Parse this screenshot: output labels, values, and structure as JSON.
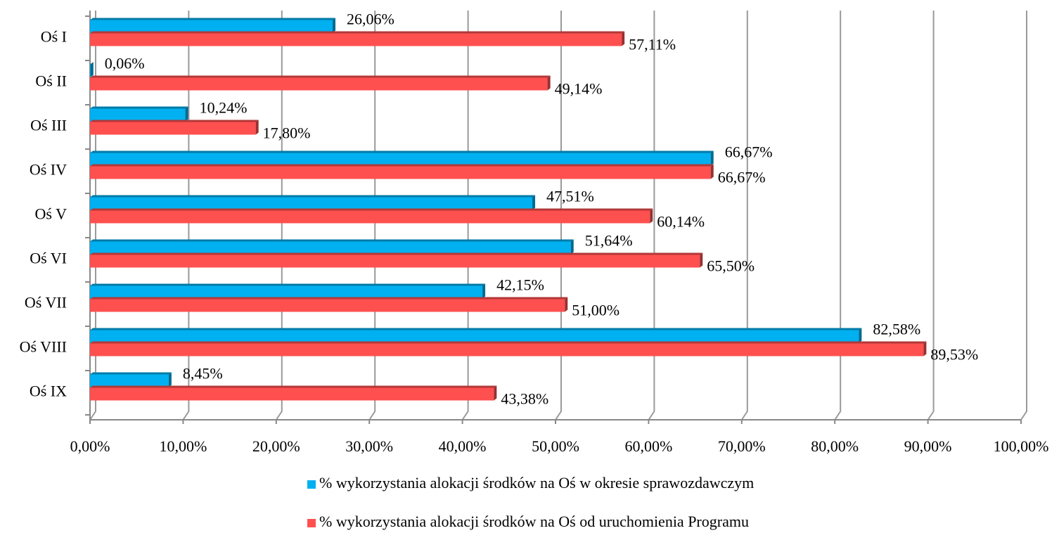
{
  "chart_data": {
    "type": "bar",
    "orientation": "horizontal",
    "categories": [
      "Oś I",
      "Oś II",
      "Oś III",
      "Oś IV",
      "Oś V",
      "Oś VI",
      "Oś VII",
      "Oś VIII",
      "Oś IX"
    ],
    "series": [
      {
        "name": "% wykorzystania alokacji środków na Oś w okresie sprawozdawczym",
        "color": "#00b0f0",
        "values": [
          26.06,
          0.06,
          10.24,
          66.67,
          47.51,
          51.64,
          42.15,
          82.58,
          8.45
        ],
        "value_labels": [
          "26,06%",
          "0,06%",
          "10,24%",
          "66,67%",
          "47,51%",
          "51,64%",
          "42,15%",
          "82,58%",
          "8,45%"
        ]
      },
      {
        "name": "% wykorzystania alokacji środków na Oś od uruchomienia Programu",
        "color": "#ff5050",
        "values": [
          57.11,
          49.14,
          17.8,
          66.67,
          60.14,
          65.5,
          51.0,
          89.53,
          43.38
        ],
        "value_labels": [
          "57,11%",
          "49,14%",
          "17,80%",
          "66,67%",
          "60,14%",
          "65,50%",
          "51,00%",
          "89,53%",
          "43,38%"
        ]
      }
    ],
    "xlim": [
      0,
      100
    ],
    "xticks": [
      {
        "value": 0,
        "label": "0,00%"
      },
      {
        "value": 10,
        "label": "10,00%"
      },
      {
        "value": 20,
        "label": "20,00%"
      },
      {
        "value": 30,
        "label": "30,00%"
      },
      {
        "value": 40,
        "label": "40,00%"
      },
      {
        "value": 50,
        "label": "50,00%"
      },
      {
        "value": 60,
        "label": "60,00%"
      },
      {
        "value": 70,
        "label": "70,00%"
      },
      {
        "value": 80,
        "label": "80,00%"
      },
      {
        "value": 90,
        "label": "90,00%"
      },
      {
        "value": 100,
        "label": "100,00%"
      }
    ],
    "grid": true,
    "legend": "bottom"
  }
}
